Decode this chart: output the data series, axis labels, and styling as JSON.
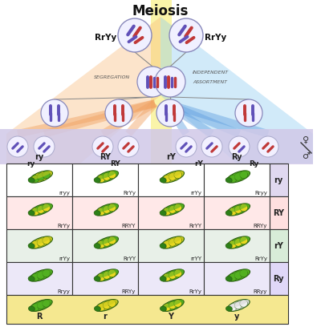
{
  "title": "Meiosis",
  "bg_color": "#ffffff",
  "punnett_labels": [
    [
      "rryy",
      "RrYy",
      "rrYy",
      "Rryy"
    ],
    [
      "RrYy",
      "RRYY",
      "RrYY",
      "RRYy"
    ],
    [
      "rrYy",
      "RrYY",
      "rrYY",
      "RrYy"
    ],
    [
      "Rryy",
      "RRYy",
      "RrYy",
      "RRyy"
    ]
  ],
  "row_labels": [
    "ry",
    "RY",
    "rY",
    "Ry"
  ],
  "col_labels": [
    "ry",
    "RY",
    "rY",
    "Ry"
  ],
  "row_bg_colors": [
    "#ffffff",
    "#ffe8e8",
    "#e8f0e8",
    "#ece8f8"
  ],
  "row_label_bg_colors": [
    "#e0d8f0",
    "#ffe0e0",
    "#d8ecd8",
    "#e0d8f8"
  ],
  "segregation_text": "SEGREGATION",
  "independent_text": "INDEPENDENT\nASSORTMENT",
  "legend_items": [
    "R",
    "r",
    "Y",
    "y"
  ],
  "legend_bg": "#f5e890",
  "purple": "#6050b8",
  "red_c": "#c03838",
  "orange_fan": "#f0a060",
  "blue_fan": "#60a0e0",
  "yellow_strip": "#f8e840",
  "gamete_bg": "#d0c8e8"
}
